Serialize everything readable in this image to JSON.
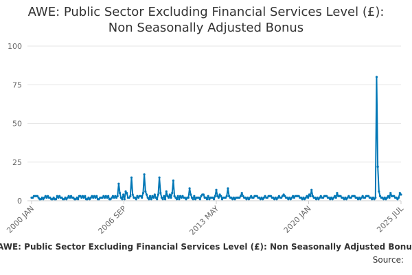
{
  "chart_data": {
    "type": "line",
    "title_line1": "AWE: Public Sector Excluding Financial Services Level (£):",
    "title_line2": "Non Seasonally Adjusted Bonus",
    "xlabel": "",
    "ylabel": "",
    "ylim": [
      0,
      100
    ],
    "yticks": [
      0,
      25,
      50,
      75,
      100
    ],
    "x_tick_labels": [
      "2000 JAN",
      "2006 SEP",
      "2013 MAY",
      "2020 JAN",
      "2025 JUL"
    ],
    "x_start": "2000 JAN",
    "x_end": "2025 JUL",
    "grid": true,
    "legend": "bottom",
    "series": [
      {
        "name": "AWE: Public Sector Excluding Financial Services Level (£): Non Seasonally Adjusted Bonus",
        "color": "#0077b6",
        "x_start": "2000 JAN",
        "x_step": "1 month",
        "values": [
          2,
          2,
          3,
          3,
          3,
          3,
          2,
          1,
          1,
          2,
          1,
          2,
          3,
          2,
          3,
          2,
          2,
          1,
          1,
          2,
          1,
          1,
          3,
          2,
          3,
          2,
          2,
          1,
          1,
          2,
          1,
          2,
          3,
          2,
          3,
          2,
          2,
          1,
          1,
          2,
          1,
          3,
          3,
          2,
          3,
          2,
          3,
          1,
          1,
          2,
          1,
          2,
          3,
          2,
          3,
          2,
          3,
          1,
          1,
          2,
          2,
          2,
          3,
          2,
          3,
          2,
          3,
          1,
          1,
          2,
          3,
          2,
          3,
          2,
          3,
          11,
          5,
          2,
          1,
          4,
          1,
          6,
          5,
          2,
          2,
          3,
          15,
          4,
          2,
          2,
          1,
          3,
          2,
          3,
          3,
          2,
          5,
          17,
          6,
          4,
          2,
          1,
          3,
          1,
          3,
          2,
          4,
          2,
          1,
          4,
          15,
          5,
          2,
          1,
          3,
          1,
          6,
          3,
          2,
          4,
          2,
          5,
          13,
          3,
          2,
          1,
          3,
          1,
          3,
          2,
          3,
          2,
          2,
          1,
          2,
          2,
          8,
          4,
          2,
          1,
          3,
          1,
          2,
          2,
          2,
          1,
          3,
          4,
          4,
          2,
          2,
          1,
          3,
          1,
          2,
          2,
          2,
          1,
          3,
          7,
          3,
          2,
          4,
          3,
          1,
          2,
          2,
          2,
          3,
          8,
          3,
          2,
          2,
          1,
          2,
          1,
          2,
          2,
          2,
          2,
          3,
          5,
          3,
          2,
          2,
          1,
          2,
          1,
          2,
          3,
          2,
          2,
          3,
          3,
          3,
          2,
          2,
          1,
          2,
          1,
          2,
          3,
          2,
          2,
          3,
          3,
          3,
          2,
          2,
          1,
          2,
          1,
          2,
          3,
          2,
          2,
          3,
          4,
          3,
          2,
          2,
          1,
          2,
          1,
          2,
          3,
          2,
          3,
          3,
          3,
          3,
          2,
          2,
          1,
          2,
          1,
          2,
          3,
          2,
          4,
          3,
          7,
          3,
          2,
          2,
          1,
          2,
          1,
          2,
          3,
          2,
          2,
          3,
          3,
          3,
          2,
          2,
          1,
          2,
          1,
          2,
          3,
          2,
          5,
          3,
          3,
          3,
          2,
          2,
          1,
          2,
          1,
          2,
          3,
          2,
          2,
          3,
          3,
          3,
          2,
          2,
          1,
          2,
          1,
          2,
          3,
          2,
          2,
          3,
          3,
          3,
          2,
          2,
          1,
          2,
          1,
          2,
          80,
          22,
          6,
          3,
          2,
          2,
          1,
          2,
          1,
          2,
          3,
          2,
          5,
          3,
          3,
          3,
          2,
          2,
          1,
          2,
          5,
          4
        ]
      }
    ]
  },
  "footer": {
    "legend_label": "AWE: Public Sector Excluding Financial Services Level (£): Non Seasonally Adjusted Bonus",
    "source_label": "Source:"
  }
}
